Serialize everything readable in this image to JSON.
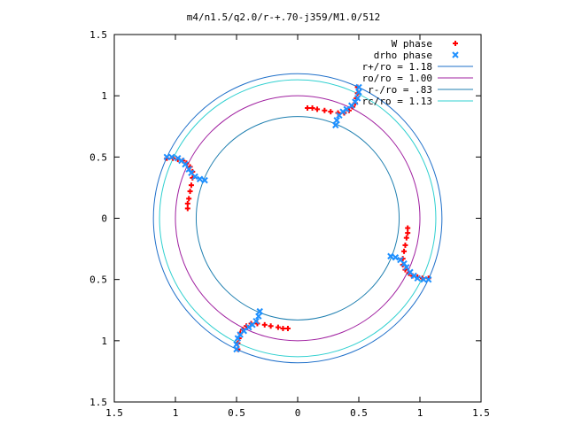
{
  "chart_data": {
    "type": "scatter",
    "title": "m4/n1.5/q2.0/r-+.70-j359/M1.0/512",
    "xlim": [
      -1.5,
      1.5
    ],
    "ylim": [
      -1.5,
      1.5
    ],
    "x_ticks": [
      -1.5,
      -1,
      -0.5,
      0,
      0.5,
      1,
      1.5
    ],
    "y_ticks": [
      -1.5,
      -1,
      -0.5,
      0,
      0.5,
      1,
      1.5
    ],
    "x_tick_labels": [
      "1.5",
      "1",
      "0.5",
      "0",
      "0.5",
      "1",
      "1.5"
    ],
    "y_tick_labels": [
      "1.5",
      "1",
      "0.5",
      "0",
      "0.5",
      "1",
      "1.5"
    ],
    "grid": false,
    "legend_position": "top-right",
    "colors": {
      "w_phase": "#ff0000",
      "drho_phase": "#1e90ff",
      "r_plus": "#1e6fc9",
      "r_o": "#a020a0",
      "r_minus": "#1f7fb0",
      "r_c": "#30d0d0"
    },
    "circles": [
      {
        "label": "r+/ro = 1.18",
        "radius": 1.18,
        "color": "#1e6fc9"
      },
      {
        "label": "ro/ro = 1.00",
        "radius": 1.0,
        "color": "#a020a0"
      },
      {
        "label": "r-/ro = .83",
        "radius": 0.83,
        "color": "#1f7fb0"
      },
      {
        "label": "rc/ro = 1.13",
        "radius": 1.13,
        "color": "#30d0d0"
      }
    ],
    "series": [
      {
        "name": "W phase",
        "marker": "+",
        "arms": [
          [
            [
              0.49,
              1.07
            ],
            [
              0.49,
              1.02
            ],
            [
              0.48,
              0.98
            ],
            [
              0.47,
              0.94
            ],
            [
              0.45,
              0.91
            ],
            [
              0.42,
              0.88
            ],
            [
              0.38,
              0.86
            ],
            [
              0.33,
              0.86
            ],
            [
              0.27,
              0.87
            ],
            [
              0.22,
              0.88
            ],
            [
              0.16,
              0.89
            ],
            [
              0.12,
              0.9
            ],
            [
              0.08,
              0.9
            ]
          ],
          [
            [
              1.07,
              -0.49
            ],
            [
              1.02,
              -0.49
            ],
            [
              0.98,
              -0.48
            ],
            [
              0.94,
              -0.47
            ],
            [
              0.91,
              -0.45
            ],
            [
              0.88,
              -0.42
            ],
            [
              0.86,
              -0.38
            ],
            [
              0.86,
              -0.33
            ],
            [
              0.87,
              -0.27
            ],
            [
              0.88,
              -0.22
            ],
            [
              0.89,
              -0.16
            ],
            [
              0.9,
              -0.12
            ],
            [
              0.9,
              -0.08
            ]
          ],
          [
            [
              -0.49,
              -1.07
            ],
            [
              -0.49,
              -1.02
            ],
            [
              -0.48,
              -0.98
            ],
            [
              -0.47,
              -0.94
            ],
            [
              -0.45,
              -0.91
            ],
            [
              -0.42,
              -0.88
            ],
            [
              -0.38,
              -0.86
            ],
            [
              -0.33,
              -0.86
            ],
            [
              -0.27,
              -0.87
            ],
            [
              -0.22,
              -0.88
            ],
            [
              -0.16,
              -0.89
            ],
            [
              -0.12,
              -0.9
            ],
            [
              -0.08,
              -0.9
            ]
          ],
          [
            [
              -1.07,
              0.49
            ],
            [
              -1.02,
              0.49
            ],
            [
              -0.98,
              0.48
            ],
            [
              -0.94,
              0.47
            ],
            [
              -0.91,
              0.45
            ],
            [
              -0.88,
              0.42
            ],
            [
              -0.86,
              0.38
            ],
            [
              -0.86,
              0.33
            ],
            [
              -0.87,
              0.27
            ],
            [
              -0.88,
              0.22
            ],
            [
              -0.89,
              0.16
            ],
            [
              -0.9,
              0.12
            ],
            [
              -0.9,
              0.08
            ]
          ]
        ]
      },
      {
        "name": "drho phase",
        "marker": "x",
        "arms": [
          [
            [
              0.31,
              0.76
            ],
            [
              0.32,
              0.8
            ],
            [
              0.34,
              0.84
            ],
            [
              0.37,
              0.87
            ],
            [
              0.4,
              0.89
            ],
            [
              0.44,
              0.92
            ],
            [
              0.47,
              0.95
            ],
            [
              0.49,
              0.98
            ],
            [
              0.5,
              1.03
            ],
            [
              0.5,
              1.07
            ]
          ],
          [
            [
              0.76,
              -0.31
            ],
            [
              0.8,
              -0.32
            ],
            [
              0.84,
              -0.34
            ],
            [
              0.87,
              -0.37
            ],
            [
              0.89,
              -0.4
            ],
            [
              0.92,
              -0.44
            ],
            [
              0.95,
              -0.47
            ],
            [
              0.98,
              -0.49
            ],
            [
              1.03,
              -0.5
            ],
            [
              1.07,
              -0.5
            ]
          ],
          [
            [
              -0.31,
              -0.76
            ],
            [
              -0.32,
              -0.8
            ],
            [
              -0.34,
              -0.84
            ],
            [
              -0.37,
              -0.87
            ],
            [
              -0.4,
              -0.89
            ],
            [
              -0.44,
              -0.92
            ],
            [
              -0.47,
              -0.95
            ],
            [
              -0.49,
              -0.98
            ],
            [
              -0.5,
              -1.03
            ],
            [
              -0.5,
              -1.07
            ]
          ],
          [
            [
              -0.76,
              0.31
            ],
            [
              -0.8,
              0.32
            ],
            [
              -0.84,
              0.34
            ],
            [
              -0.87,
              0.37
            ],
            [
              -0.89,
              0.4
            ],
            [
              -0.92,
              0.44
            ],
            [
              -0.95,
              0.47
            ],
            [
              -0.98,
              0.49
            ],
            [
              -1.03,
              0.5
            ],
            [
              -1.07,
              0.5
            ]
          ]
        ]
      }
    ]
  }
}
